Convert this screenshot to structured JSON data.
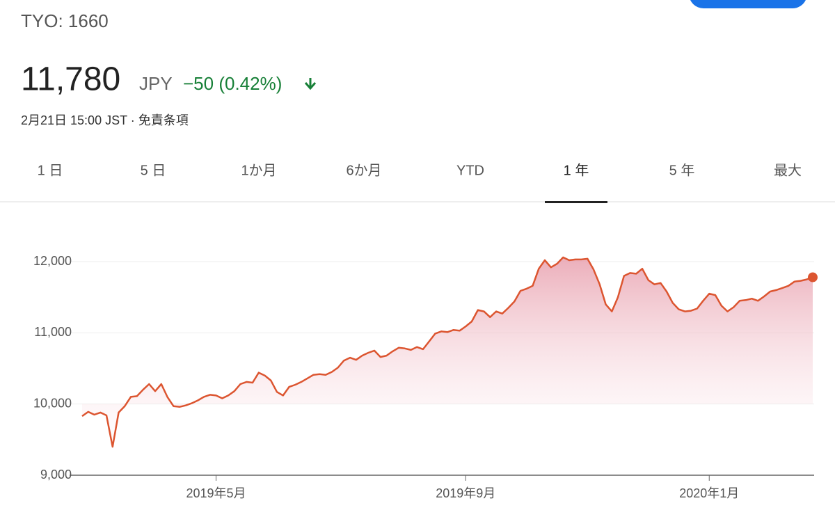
{
  "header": {
    "symbol": "TYO: 1660",
    "price": "11,780",
    "currency": "JPY",
    "change": "−50 (0.42%)",
    "timestamp": "2月21日 15:00 JST · 免責条項"
  },
  "tabs": [
    "1 日",
    "5 日",
    "1か月",
    "6か月",
    "YTD",
    "1 年",
    "5 年",
    "最大"
  ],
  "selected_tab": 5,
  "chart_data": {
    "type": "line",
    "color": "#dc5530",
    "series": [
      {
        "values": [
          9830,
          9890,
          9850,
          9880,
          9840,
          9400,
          9880,
          9970,
          10100,
          10110,
          10200,
          10280,
          10180,
          10280,
          10100,
          9970,
          9960,
          9980,
          10010,
          10050,
          10100,
          10130,
          10120,
          10080,
          10120,
          10180,
          10280,
          10310,
          10300,
          10440,
          10400,
          10330,
          10170,
          10120,
          10240,
          10270,
          10310,
          10360,
          10410,
          10420,
          10410,
          10450,
          10510,
          10610,
          10650,
          10620,
          10680,
          10720,
          10750,
          10660,
          10680,
          10740,
          10790,
          10780,
          10760,
          10800,
          10770,
          10880,
          10990,
          11020,
          11010,
          11040,
          11030,
          11090,
          11160,
          11320,
          11300,
          11220,
          11300,
          11270,
          11350,
          11440,
          11590,
          11620,
          11660,
          11900,
          12020,
          11920,
          11970,
          12060,
          12020,
          12030,
          12030,
          12040,
          11890,
          11680,
          11400,
          11300,
          11500,
          11800,
          11840,
          11830,
          11900,
          11740,
          11680,
          11700,
          11580,
          11420,
          11330,
          11300,
          11310,
          11340,
          11450,
          11550,
          11530,
          11380,
          11300,
          11360,
          11450,
          11460,
          11480,
          11450,
          11510,
          11580,
          11600,
          11630,
          11660,
          11720,
          11730,
          11750,
          11780
        ]
      }
    ],
    "xlim": [
      0,
      120
    ],
    "xticks": [
      {
        "value": 22,
        "label": "2019年5月"
      },
      {
        "value": 63,
        "label": "2019年9月"
      },
      {
        "value": 103,
        "label": "2020年1月"
      }
    ],
    "ylim": [
      9000,
      12000
    ],
    "yticks": [
      {
        "value": 9000,
        "label": "9,000"
      },
      {
        "value": 10000,
        "label": "10,000"
      },
      {
        "value": 11000,
        "label": "11,000"
      },
      {
        "value": 12000,
        "label": "12,000"
      }
    ],
    "grid": true
  }
}
